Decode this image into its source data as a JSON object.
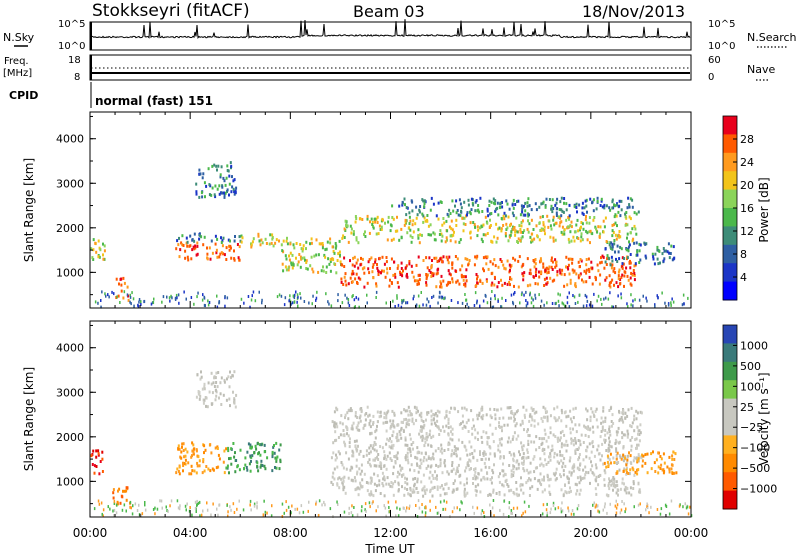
{
  "header": {
    "station": "Stokkseyri (fitACF)",
    "beam": "Beam 03",
    "date": "18/Nov/2013"
  },
  "top_panels": {
    "nsky_label": "N.Sky",
    "nsky_ticks": [
      "10^5",
      "10^0"
    ],
    "nsearch_label": "N.Search",
    "nsearch_ticks": [
      "10^5",
      "10^0"
    ],
    "freq_label": "Freq.",
    "freq_unit": "[MHz]",
    "freq_ticks": [
      "18",
      "8"
    ],
    "nave_label": "Nave",
    "nave_ticks": [
      "60",
      "0"
    ],
    "cpid_label": "CPID",
    "cpid_value": "normal (fast) 151"
  },
  "chart_data": [
    {
      "type": "heatmap",
      "name": "power",
      "ylabel": "Slant Range [km]",
      "ylim": [
        200,
        4600
      ],
      "yticks": [
        "4000",
        "3000",
        "2000",
        "1000"
      ],
      "xlim_hours": [
        0,
        24
      ],
      "colorbar": {
        "label": "Power [dB]",
        "ticks": [
          "28",
          "24",
          "20",
          "16",
          "12",
          "8",
          "4"
        ],
        "colors": [
          "#e8001c",
          "#ff5a00",
          "#ff9a1e",
          "#f2c41a",
          "#8bd45a",
          "#4bb84b",
          "#3d8c78",
          "#2e5fa3",
          "#1b35c7",
          "#0000ff"
        ]
      },
      "regions": [
        {
          "t": [
            0.0,
            0.6
          ],
          "r": [
            1300,
            1900
          ],
          "level": "mid"
        },
        {
          "t": [
            1.0,
            1.5
          ],
          "r": [
            400,
            900
          ],
          "level": "high"
        },
        {
          "t": [
            3.4,
            6.0
          ],
          "r": [
            1300,
            1700
          ],
          "level": "high"
        },
        {
          "t": [
            3.4,
            6.0
          ],
          "r": [
            1700,
            1900
          ],
          "level": "low"
        },
        {
          "t": [
            4.2,
            5.8
          ],
          "r": [
            2700,
            3500
          ],
          "level": "low"
        },
        {
          "t": [
            6.0,
            7.6
          ],
          "r": [
            1600,
            1900
          ],
          "level": "mid"
        },
        {
          "t": [
            7.6,
            10.0
          ],
          "r": [
            1000,
            1800
          ],
          "level": "mid"
        },
        {
          "t": [
            10.0,
            21.8
          ],
          "r": [
            700,
            1400
          ],
          "level": "high"
        },
        {
          "t": [
            10.0,
            21.8
          ],
          "r": [
            1700,
            2300
          ],
          "level": "mid"
        },
        {
          "t": [
            12.0,
            22.0
          ],
          "r": [
            2300,
            2700
          ],
          "level": "low"
        },
        {
          "t": [
            20.5,
            23.4
          ],
          "r": [
            1200,
            1700
          ],
          "level": "low"
        }
      ]
    },
    {
      "type": "heatmap",
      "name": "velocity",
      "ylabel": "Slant Range [km]",
      "ylim": [
        200,
        4600
      ],
      "yticks": [
        "4000",
        "3000",
        "2000",
        "1000"
      ],
      "xlabel": "Time UT",
      "xticks": [
        "00:00",
        "04:00",
        "08:00",
        "12:00",
        "16:00",
        "20:00",
        "00:00"
      ],
      "xlim_hours": [
        0,
        24
      ],
      "colorbar": {
        "label": "Velocity [m s⁻¹]",
        "ticks": [
          "1000",
          "500",
          "100",
          "25",
          "−25",
          "−100",
          "−500",
          "−1000"
        ],
        "colors": [
          "#2846b4",
          "#3a7a7a",
          "#3e9a4a",
          "#7ac84a",
          "#c8c8c0",
          "#c8c8c0",
          "#ffb020",
          "#ff8a00",
          "#ff5a00",
          "#e00000"
        ]
      },
      "regions": [
        {
          "t": [
            0.0,
            0.5
          ],
          "r": [
            1200,
            1800
          ],
          "level": "neg_large"
        },
        {
          "t": [
            0.8,
            1.6
          ],
          "r": [
            500,
            900
          ],
          "level": "neg_mid"
        },
        {
          "t": [
            3.4,
            5.4
          ],
          "r": [
            1200,
            1900
          ],
          "level": "neg_small"
        },
        {
          "t": [
            5.4,
            7.6
          ],
          "r": [
            1200,
            1900
          ],
          "level": "pos_mid"
        },
        {
          "t": [
            9.6,
            22.0
          ],
          "r": [
            700,
            2700
          ],
          "level": "near_zero"
        },
        {
          "t": [
            4.2,
            5.8
          ],
          "r": [
            2700,
            3500
          ],
          "level": "near_zero"
        },
        {
          "t": [
            20.5,
            23.4
          ],
          "r": [
            1200,
            1700
          ],
          "level": "neg_small"
        }
      ]
    }
  ]
}
